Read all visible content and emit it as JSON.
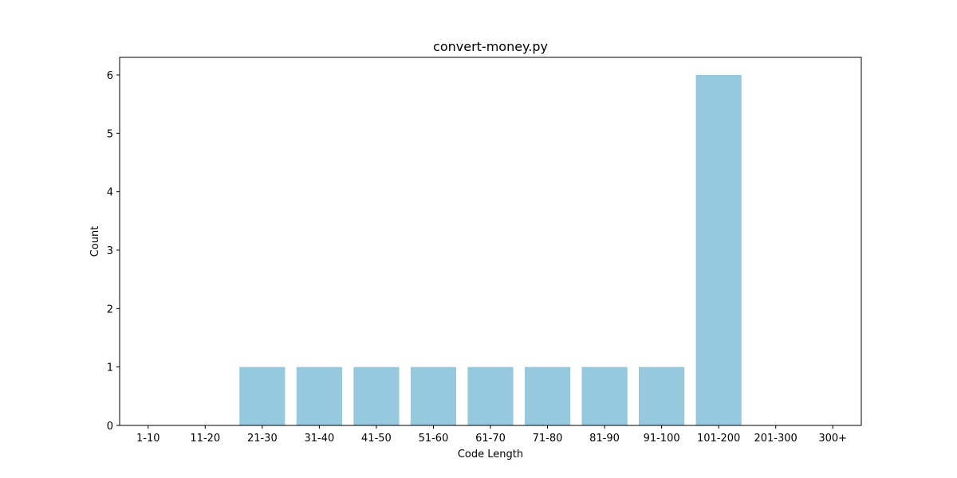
{
  "chart_data": {
    "type": "bar",
    "title": "convert-money.py",
    "xlabel": "Code Length",
    "ylabel": "Count",
    "categories": [
      "1-10",
      "11-20",
      "21-30",
      "31-40",
      "41-50",
      "51-60",
      "61-70",
      "71-80",
      "81-90",
      "91-100",
      "101-200",
      "201-300",
      "300+"
    ],
    "values": [
      0,
      0,
      1,
      1,
      1,
      1,
      1,
      1,
      1,
      1,
      6,
      0,
      0
    ],
    "ylim": [
      0,
      6.3
    ],
    "yticks": [
      0,
      1,
      2,
      3,
      4,
      5,
      6
    ],
    "grid": false,
    "bar_color": "#96c9dd"
  }
}
